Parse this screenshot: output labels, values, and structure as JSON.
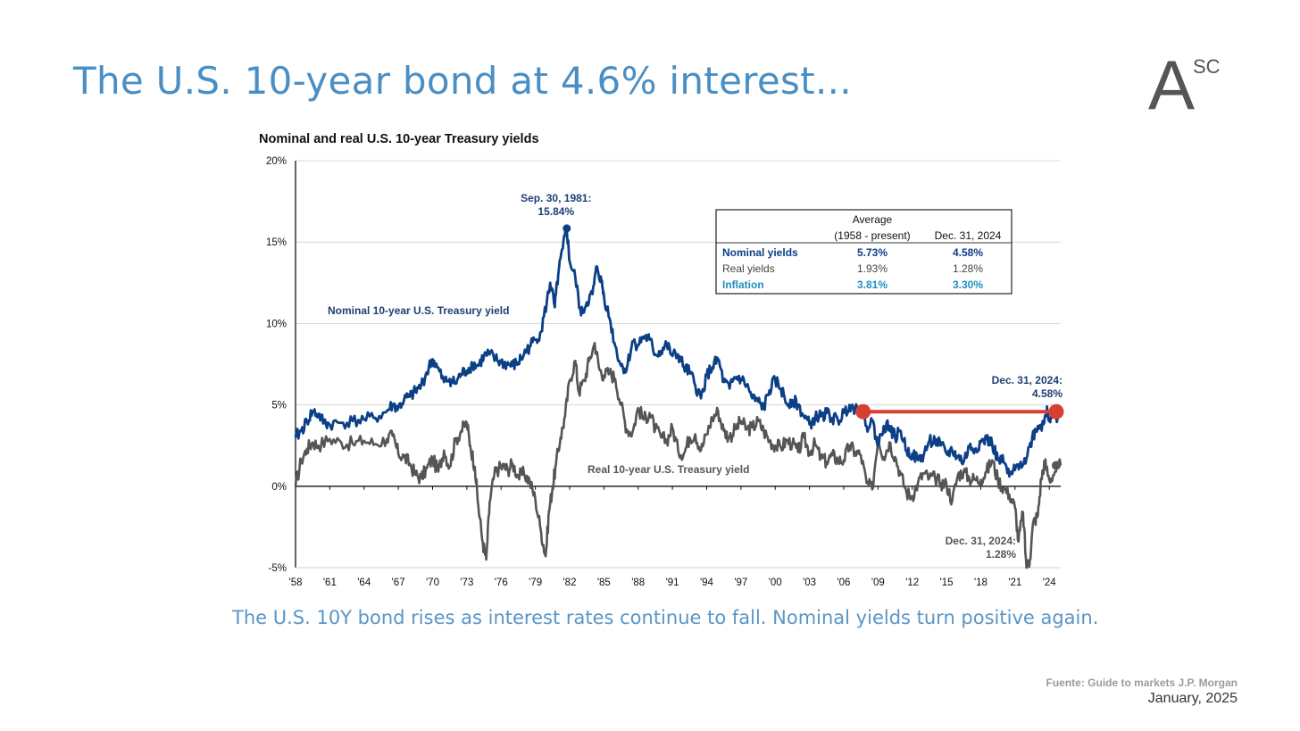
{
  "slide": {
    "title": "The U.S. 10-year bond at 4.6% interest...",
    "caption": "The U.S. 10Y bond rises as interest rates continue to fall. Nominal yields turn positive again.",
    "source": "Fuente: Guide to markets J.P. Morgan",
    "date": "January, 2025",
    "logo": {
      "letter": "A",
      "superscript": "SC",
      "color": "#555555"
    },
    "title_color": "#4a8fc4",
    "caption_color": "#5b95c6"
  },
  "chart_data": {
    "type": "line",
    "title": "Nominal and real U.S. 10-year Treasury yields",
    "ylim": [
      -5,
      20
    ],
    "xlim": [
      1958,
      2025
    ],
    "y_ticks": [
      "20%",
      "15%",
      "10%",
      "5%",
      "0%",
      "-5%"
    ],
    "y_tick_values": [
      20,
      15,
      10,
      5,
      0,
      -5
    ],
    "x_ticks": [
      "'58",
      "'61",
      "'64",
      "'67",
      "'70",
      "'73",
      "'76",
      "'79",
      "'82",
      "'85",
      "'88",
      "'91",
      "'94",
      "'97",
      "'00",
      "'03",
      "'06",
      "'09",
      "'12",
      "'15",
      "'18",
      "'21",
      "'24"
    ],
    "x_tick_values": [
      1958,
      1961,
      1964,
      1967,
      1970,
      1973,
      1976,
      1979,
      1982,
      1985,
      1988,
      1991,
      1994,
      1997,
      2000,
      2003,
      2006,
      2009,
      2012,
      2015,
      2018,
      2021,
      2024
    ],
    "grid": true,
    "series": [
      {
        "name": "Nominal 10-year U.S. Treasury yield",
        "color": "#0b3f86",
        "x": [
          1958.0,
          1958.5,
          1959.0,
          1959.5,
          1960.0,
          1960.5,
          1961.0,
          1962.0,
          1963.0,
          1964.0,
          1965.0,
          1966.0,
          1966.5,
          1967.0,
          1967.5,
          1968.0,
          1968.5,
          1969.0,
          1969.5,
          1970.0,
          1970.4,
          1971.0,
          1971.5,
          1972.0,
          1972.5,
          1973.0,
          1973.5,
          1974.0,
          1974.5,
          1975.0,
          1975.5,
          1976.0,
          1976.5,
          1977.0,
          1977.5,
          1978.0,
          1978.5,
          1979.0,
          1979.5,
          1980.0,
          1980.3,
          1980.7,
          1981.0,
          1981.4,
          1981.75,
          1982.0,
          1982.5,
          1983.0,
          1983.5,
          1984.0,
          1984.4,
          1984.8,
          1985.0,
          1985.5,
          1986.0,
          1986.5,
          1987.0,
          1987.5,
          1988.0,
          1988.5,
          1989.0,
          1989.5,
          1990.0,
          1990.5,
          1991.0,
          1991.5,
          1992.0,
          1992.5,
          1993.0,
          1993.5,
          1994.0,
          1994.5,
          1995.0,
          1995.5,
          1996.0,
          1996.5,
          1997.0,
          1997.5,
          1998.0,
          1998.5,
          1999.0,
          1999.5,
          2000.0,
          2000.5,
          2001.0,
          2001.5,
          2002.0,
          2002.5,
          2003.0,
          2003.5,
          2004.0,
          2004.5,
          2005.0,
          2005.5,
          2006.0,
          2006.5,
          2007.0,
          2007.5,
          2008.0,
          2008.5,
          2009.0,
          2009.5,
          2010.0,
          2010.5,
          2011.0,
          2011.5,
          2012.0,
          2012.5,
          2013.0,
          2013.5,
          2014.0,
          2014.5,
          2015.0,
          2015.5,
          2016.0,
          2016.5,
          2017.0,
          2017.5,
          2018.0,
          2018.5,
          2019.0,
          2019.5,
          2020.0,
          2020.5,
          2021.0,
          2021.5,
          2022.0,
          2022.5,
          2023.0,
          2023.5,
          2023.8,
          2024.0,
          2024.5,
          2025.0
        ],
        "y": [
          3.0,
          3.4,
          4.0,
          4.6,
          4.4,
          3.9,
          3.8,
          3.9,
          4.0,
          4.1,
          4.2,
          4.6,
          5.0,
          4.8,
          5.3,
          5.5,
          5.8,
          6.2,
          7.0,
          7.8,
          7.3,
          6.4,
          6.6,
          6.3,
          6.9,
          7.1,
          7.5,
          7.4,
          8.0,
          8.1,
          7.8,
          7.6,
          7.5,
          7.4,
          7.6,
          8.1,
          8.6,
          9.0,
          9.5,
          11.3,
          12.5,
          11.0,
          13.0,
          14.6,
          15.84,
          13.8,
          12.8,
          10.5,
          11.3,
          11.8,
          13.5,
          12.5,
          11.7,
          10.3,
          8.6,
          7.4,
          7.2,
          8.9,
          8.7,
          9.2,
          9.0,
          8.1,
          8.3,
          8.7,
          8.0,
          8.1,
          7.3,
          7.0,
          6.2,
          5.4,
          6.8,
          7.3,
          7.8,
          6.4,
          6.0,
          6.7,
          6.6,
          6.2,
          5.4,
          5.2,
          4.8,
          5.9,
          6.5,
          6.0,
          5.1,
          5.3,
          5.0,
          4.3,
          3.8,
          4.2,
          4.3,
          4.5,
          4.2,
          4.0,
          4.5,
          5.0,
          4.8,
          4.7,
          3.7,
          4.0,
          2.5,
          3.7,
          3.7,
          3.0,
          3.4,
          2.2,
          2.0,
          1.6,
          1.9,
          2.8,
          2.8,
          2.5,
          2.0,
          2.2,
          1.8,
          1.5,
          2.4,
          2.3,
          2.7,
          2.9,
          2.6,
          1.6,
          1.5,
          0.6,
          1.0,
          1.5,
          1.7,
          3.0,
          3.7,
          3.8,
          4.9,
          4.0,
          4.2,
          4.58
        ]
      },
      {
        "name": "Real 10-year U.S. Treasury yield",
        "color": "#555555",
        "x": [
          1958.0,
          1958.5,
          1959.0,
          1959.5,
          1960.0,
          1961.0,
          1962.0,
          1963.0,
          1964.0,
          1965.0,
          1966.0,
          1966.5,
          1967.0,
          1967.5,
          1968.0,
          1968.5,
          1969.0,
          1969.5,
          1970.0,
          1970.5,
          1971.0,
          1971.5,
          1972.0,
          1972.5,
          1973.0,
          1973.3,
          1973.7,
          1974.0,
          1974.4,
          1974.7,
          1975.0,
          1975.4,
          1975.8,
          1976.2,
          1976.6,
          1977.0,
          1977.5,
          1978.0,
          1978.5,
          1979.0,
          1979.5,
          1979.9,
          1980.2,
          1980.5,
          1980.8,
          1981.2,
          1981.6,
          1982.0,
          1982.5,
          1982.8,
          1983.3,
          1983.7,
          1984.2,
          1984.6,
          1985.0,
          1985.5,
          1986.0,
          1986.5,
          1987.0,
          1987.5,
          1988.0,
          1988.5,
          1989.0,
          1989.5,
          1990.0,
          1990.5,
          1991.0,
          1991.5,
          1992.0,
          1992.5,
          1993.0,
          1993.5,
          1994.0,
          1994.5,
          1995.0,
          1995.5,
          1996.0,
          1996.5,
          1997.0,
          1997.5,
          1998.0,
          1998.5,
          1999.0,
          1999.5,
          2000.0,
          2000.5,
          2001.0,
          2001.5,
          2002.0,
          2002.5,
          2003.0,
          2003.5,
          2004.0,
          2004.5,
          2005.0,
          2005.5,
          2006.0,
          2006.5,
          2007.0,
          2007.5,
          2008.0,
          2008.5,
          2009.0,
          2009.5,
          2010.0,
          2010.5,
          2011.0,
          2011.5,
          2012.0,
          2012.5,
          2013.0,
          2013.5,
          2014.0,
          2014.5,
          2015.0,
          2015.5,
          2016.0,
          2016.5,
          2017.0,
          2017.5,
          2018.0,
          2018.5,
          2019.0,
          2019.5,
          2020.0,
          2020.5,
          2021.0,
          2021.3,
          2021.7,
          2022.0,
          2022.3,
          2022.6,
          2023.0,
          2023.3,
          2023.6,
          2024.0,
          2024.5,
          2025.0
        ],
        "y": [
          0.0,
          1.6,
          2.3,
          2.7,
          2.5,
          2.9,
          2.7,
          2.6,
          2.8,
          2.6,
          2.9,
          3.1,
          2.0,
          1.8,
          1.4,
          0.7,
          0.5,
          1.1,
          1.7,
          0.9,
          2.2,
          1.2,
          2.8,
          3.4,
          3.9,
          2.5,
          1.2,
          -1.2,
          -3.5,
          -4.5,
          -1.0,
          0.7,
          1.1,
          1.2,
          1.0,
          1.4,
          0.6,
          0.8,
          0.3,
          -0.8,
          -2.8,
          -4.3,
          -1.5,
          -0.1,
          1.3,
          3.0,
          4.3,
          6.5,
          7.7,
          5.8,
          6.5,
          7.7,
          8.8,
          7.2,
          6.8,
          7.0,
          6.6,
          5.0,
          3.5,
          3.3,
          4.8,
          4.1,
          4.5,
          3.5,
          3.0,
          2.8,
          3.6,
          2.2,
          2.0,
          3.0,
          3.2,
          2.2,
          3.2,
          4.2,
          4.6,
          3.4,
          3.0,
          3.5,
          4.0,
          3.5,
          3.6,
          4.0,
          3.4,
          2.8,
          2.5,
          2.4,
          2.8,
          2.6,
          2.1,
          3.0,
          2.1,
          2.6,
          1.7,
          1.5,
          1.9,
          1.6,
          1.6,
          2.5,
          2.1,
          1.9,
          0.2,
          -0.2,
          3.0,
          1.8,
          2.7,
          1.8,
          0.7,
          -0.4,
          -0.6,
          0.2,
          0.8,
          0.5,
          0.5,
          0.2,
          0.1,
          -0.9,
          0.7,
          0.9,
          0.5,
          0.4,
          0.4,
          0.9,
          1.6,
          0.4,
          -0.1,
          -0.5,
          -1.3,
          -3.4,
          -1.6,
          -5.0,
          -4.5,
          -2.2,
          -1.8,
          0.5,
          1.5,
          0.4,
          0.9,
          1.28
        ]
      }
    ],
    "annotations": [
      {
        "text": [
          "Sep. 30, 1981:",
          "15.84%"
        ],
        "x": 1981.75,
        "y": 15.84,
        "color": "#1e3f73"
      },
      {
        "text": [
          "Nominal 10-year U.S.  Treasury yield"
        ],
        "color": "#1e3f73"
      },
      {
        "text": [
          "Real 10-year U.S.  Treasury yield"
        ],
        "color": "#555555"
      },
      {
        "text": [
          "Dec. 31, 2024:",
          "4.58%"
        ],
        "x": 2025,
        "y": 4.58,
        "color": "#1e3f73"
      },
      {
        "text": [
          "Dec. 31, 2024:",
          "1.28%"
        ],
        "x": 2025,
        "y": 1.28,
        "color": "#555555"
      }
    ],
    "highlight": {
      "from_x": 2007.7,
      "to_x": 2025,
      "y": 4.58,
      "color": "#d64033"
    },
    "summary_table": {
      "headers": [
        "",
        "Average\n(1958 - present)",
        "Dec. 31, 2024"
      ],
      "header_average_line1": "Average",
      "header_average_line2": "(1958 - present)",
      "header_date": "Dec. 31, 2024",
      "rows": [
        {
          "label": "Nominal yields",
          "average": "5.73%",
          "current": "4.58%",
          "color": "#0b3f86"
        },
        {
          "label": "Real yields",
          "average": "1.93%",
          "current": "1.28%",
          "color": "#444444"
        },
        {
          "label": "Inflation",
          "average": "3.81%",
          "current": "3.30%",
          "color": "#1f8fc0"
        }
      ]
    }
  }
}
